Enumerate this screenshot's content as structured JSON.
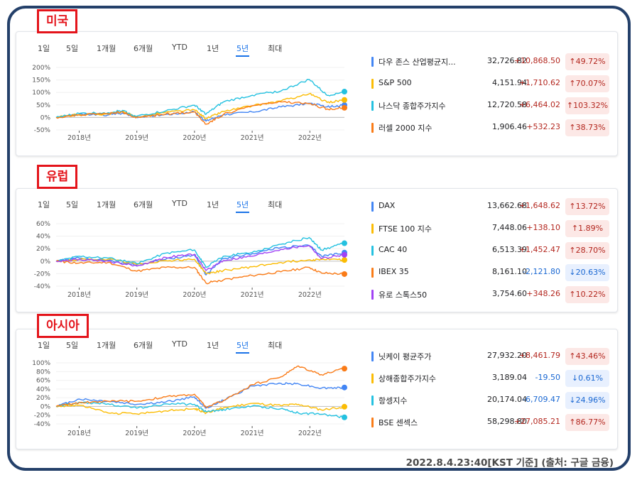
{
  "tabs": [
    "1일",
    "5일",
    "1개월",
    "6개월",
    "YTD",
    "1년",
    "5년",
    "최대"
  ],
  "active_tab": "5년",
  "footer": "2022.8.4.23:40[KST 기준] (출처: 구글 금융)",
  "regions": [
    {
      "tag": "미국",
      "indices": [
        {
          "name": "다우 존스 산업평균지...",
          "price": "32,726.82",
          "change": "+10,868.50",
          "pct": "↑49.72%",
          "dir": "up",
          "color": "#4285f4"
        },
        {
          "name": "S&P 500",
          "price": "4,151.94",
          "change": "+1,710.62",
          "pct": "↑70.07%",
          "dir": "up",
          "color": "#fbbc04"
        },
        {
          "name": "나스닥 종합주가지수",
          "price": "12,720.58",
          "change": "+6,464.02",
          "pct": "↑103.32%",
          "dir": "up",
          "color": "#24c1e0"
        },
        {
          "name": "러셀 2000 지수",
          "price": "1,906.46",
          "change": "+532.23",
          "pct": "↑38.73%",
          "dir": "up",
          "color": "#fa7b17"
        }
      ]
    },
    {
      "tag": "유럽",
      "indices": [
        {
          "name": "DAX",
          "price": "13,662.68",
          "change": "+1,648.62",
          "pct": "↑13.72%",
          "dir": "up",
          "color": "#4285f4"
        },
        {
          "name": "FTSE 100 지수",
          "price": "7,448.06",
          "change": "+138.10",
          "pct": "↑1.89%",
          "dir": "up",
          "color": "#fbbc04"
        },
        {
          "name": "CAC 40",
          "price": "6,513.39",
          "change": "+1,452.47",
          "pct": "↑28.70%",
          "dir": "up",
          "color": "#24c1e0"
        },
        {
          "name": "IBEX 35",
          "price": "8,161.10",
          "change": "-2,121.80",
          "pct": "↓20.63%",
          "dir": "down",
          "color": "#fa7b17"
        },
        {
          "name": "유로 스톡스50",
          "price": "3,754.60",
          "change": "+348.26",
          "pct": "↑10.22%",
          "dir": "up",
          "color": "#a142f4"
        }
      ]
    },
    {
      "tag": "아시아",
      "indices": [
        {
          "name": "닛케이 평균주가",
          "price": "27,932.20",
          "change": "+8,461.79",
          "pct": "↑43.46%",
          "dir": "up",
          "color": "#4285f4"
        },
        {
          "name": "상해종합주가지수",
          "price": "3,189.04",
          "change": "-19.50",
          "pct": "↓0.61%",
          "dir": "down",
          "color": "#fbbc04"
        },
        {
          "name": "항셍지수",
          "price": "20,174.04",
          "change": "-6,709.47",
          "pct": "↓24.96%",
          "dir": "down",
          "color": "#24c1e0"
        },
        {
          "name": "BSE 센섹스",
          "price": "58,298.80",
          "change": "+27,085.21",
          "pct": "↑86.77%",
          "dir": "up",
          "color": "#fa7b17"
        }
      ]
    }
  ],
  "chart_data": [
    {
      "type": "line",
      "region": "미국",
      "xlabel": "",
      "ylabel": "",
      "x": [
        2017.6,
        2018.0,
        2018.5,
        2018.75,
        2018.98,
        2019.5,
        2020.0,
        2020.2,
        2020.5,
        2021.0,
        2021.5,
        2021.99,
        2022.3,
        2022.6
      ],
      "xticks": [
        "2018년",
        "2019년",
        "2020년",
        "2021년",
        "2022년"
      ],
      "xtick_values": [
        2018,
        2019,
        2020,
        2021,
        2022
      ],
      "yticks": [
        "200%",
        "150%",
        "100%",
        "50%",
        "0%",
        "-50%"
      ],
      "ylim": [
        -50,
        200
      ],
      "series": [
        {
          "name": "다우 존스 산업평균지...",
          "color": "#4285f4",
          "values": [
            0,
            12,
            10,
            18,
            2,
            12,
            22,
            -15,
            12,
            22,
            42,
            57,
            42,
            49.72
          ]
        },
        {
          "name": "S&P 500",
          "color": "#fbbc04",
          "values": [
            0,
            12,
            14,
            23,
            2,
            21,
            30,
            -5,
            24,
            46,
            66,
            95,
            60,
            70.07
          ]
        },
        {
          "name": "나스닥 종합주가지수",
          "color": "#24c1e0",
          "values": [
            0,
            16,
            19,
            28,
            4,
            26,
            49,
            13,
            62,
            89,
            106,
            152,
            88,
            103.32
          ]
        },
        {
          "name": "러셀 2000 지수",
          "color": "#fa7b17",
          "values": [
            0,
            10,
            15,
            23,
            -2,
            14,
            22,
            -27,
            12,
            47,
            62,
            55,
            34,
            38.73
          ]
        }
      ]
    },
    {
      "type": "line",
      "region": "유럽",
      "xlabel": "",
      "ylabel": "",
      "x": [
        2017.6,
        2018.0,
        2018.5,
        2019.0,
        2019.5,
        2020.0,
        2020.2,
        2020.5,
        2021.0,
        2021.5,
        2021.99,
        2022.2,
        2022.6
      ],
      "xticks": [
        "2018년",
        "2019년",
        "2020년",
        "2021년",
        "2022년"
      ],
      "xtick_values": [
        2018,
        2019,
        2020,
        2021,
        2022
      ],
      "yticks": [
        "60%",
        "40%",
        "20%",
        "0%",
        "-20%",
        "-40%"
      ],
      "ylim": [
        -40,
        60
      ],
      "series": [
        {
          "name": "DAX",
          "color": "#4285f4",
          "values": [
            0,
            5,
            1,
            -6,
            3,
            10,
            -22,
            4,
            12,
            22,
            25,
            8,
            13.72
          ]
        },
        {
          "name": "FTSE 100 지수",
          "color": "#fbbc04",
          "values": [
            0,
            2,
            3,
            -5,
            1,
            3,
            -20,
            -15,
            -9,
            -2,
            2,
            3,
            1.89
          ]
        },
        {
          "name": "CAC 40",
          "color": "#24c1e0",
          "values": [
            0,
            8,
            5,
            -4,
            13,
            18,
            -10,
            8,
            14,
            27,
            38,
            18,
            28.7
          ]
        },
        {
          "name": "IBEX 35",
          "color": "#fa7b17",
          "values": [
            0,
            -3,
            -2,
            -16,
            -10,
            -10,
            -35,
            -30,
            -23,
            -17,
            -10,
            -19,
            -20.63
          ]
        },
        {
          "name": "유로 스톡스50",
          "color": "#a142f4",
          "values": [
            0,
            3,
            0,
            -8,
            6,
            11,
            -15,
            1,
            8,
            19,
            25,
            4,
            10.22
          ]
        }
      ]
    },
    {
      "type": "line",
      "region": "아시아",
      "xlabel": "",
      "ylabel": "",
      "x": [
        2017.6,
        2018.0,
        2018.5,
        2019.0,
        2019.5,
        2020.0,
        2020.2,
        2020.5,
        2021.0,
        2021.5,
        2021.8,
        2022.2,
        2022.6
      ],
      "xticks": [
        "2018년",
        "2019년",
        "2020년",
        "2021년",
        "2022년"
      ],
      "xtick_values": [
        2018,
        2019,
        2020,
        2021,
        2022
      ],
      "yticks": [
        "100%",
        "80%",
        "60%",
        "40%",
        "20%",
        "0%",
        "-20%",
        "-40%"
      ],
      "ylim": [
        -40,
        100
      ],
      "series": [
        {
          "name": "닛케이 평균주가",
          "color": "#4285f4",
          "values": [
            0,
            17,
            12,
            5,
            10,
            22,
            -4,
            14,
            47,
            53,
            52,
            42,
            43.46
          ]
        },
        {
          "name": "상해종합주가지수",
          "color": "#fbbc04",
          "values": [
            0,
            3,
            -15,
            -17,
            -10,
            -5,
            -15,
            -3,
            7,
            2,
            5,
            -8,
            -0.61
          ]
        },
        {
          "name": "항셍지수",
          "color": "#24c1e0",
          "values": [
            0,
            10,
            6,
            -4,
            6,
            5,
            -12,
            -7,
            1,
            -5,
            -15,
            -18,
            -24.96
          ]
        },
        {
          "name": "BSE 센섹스",
          "color": "#fa7b17",
          "values": [
            0,
            9,
            12,
            12,
            22,
            28,
            -2,
            13,
            50,
            68,
            93,
            73,
            86.77
          ]
        }
      ]
    }
  ]
}
